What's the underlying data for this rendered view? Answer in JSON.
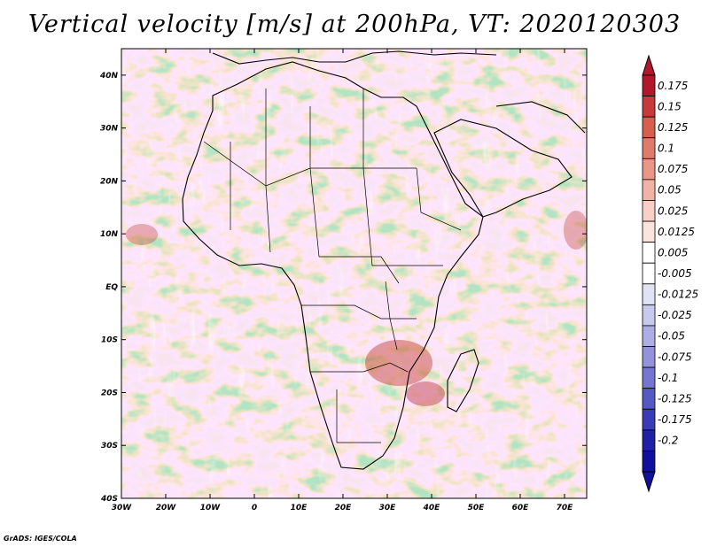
{
  "title": "Vertical velocity [m/s] at 200hPa, VT: 2020120303",
  "credit": "GrADS: IGES/COLA",
  "axes": {
    "x_ticks": [
      "30W",
      "20W",
      "10W",
      "0",
      "10E",
      "20E",
      "30E",
      "40E",
      "50E",
      "60E",
      "70E"
    ],
    "y_ticks": [
      "40N",
      "30N",
      "20N",
      "10N",
      "EQ",
      "10S",
      "20S",
      "30S",
      "40S"
    ],
    "lon_range": [
      -30,
      75
    ],
    "lat_range": [
      -40,
      45
    ]
  },
  "colorbar": {
    "labels": [
      "0.175",
      "0.15",
      "0.125",
      "0.1",
      "0.075",
      "0.05",
      "0.025",
      "0.0125",
      "0.005",
      "-0.005",
      "-0.0125",
      "-0.025",
      "-0.05",
      "-0.075",
      "-0.1",
      "-0.125",
      "-0.175",
      "-0.2"
    ],
    "colors": [
      "#b2182b",
      "#c73a3c",
      "#d6604d",
      "#e07b6c",
      "#ea9789",
      "#f2b3a7",
      "#f8d0c6",
      "#fbe4dc",
      "#ffffff",
      "#ffffff",
      "#e2e2f5",
      "#c9c9ee",
      "#adaee4",
      "#9293da",
      "#7576cf",
      "#5758c3",
      "#3a3bb5",
      "#2020a5",
      "#10109a"
    ],
    "max_color": "#b2182b",
    "min_color": "#10109a"
  },
  "colors": {
    "land_outline": "#000000",
    "field_red": "#e8918a",
    "field_blue": "#8688d8"
  }
}
